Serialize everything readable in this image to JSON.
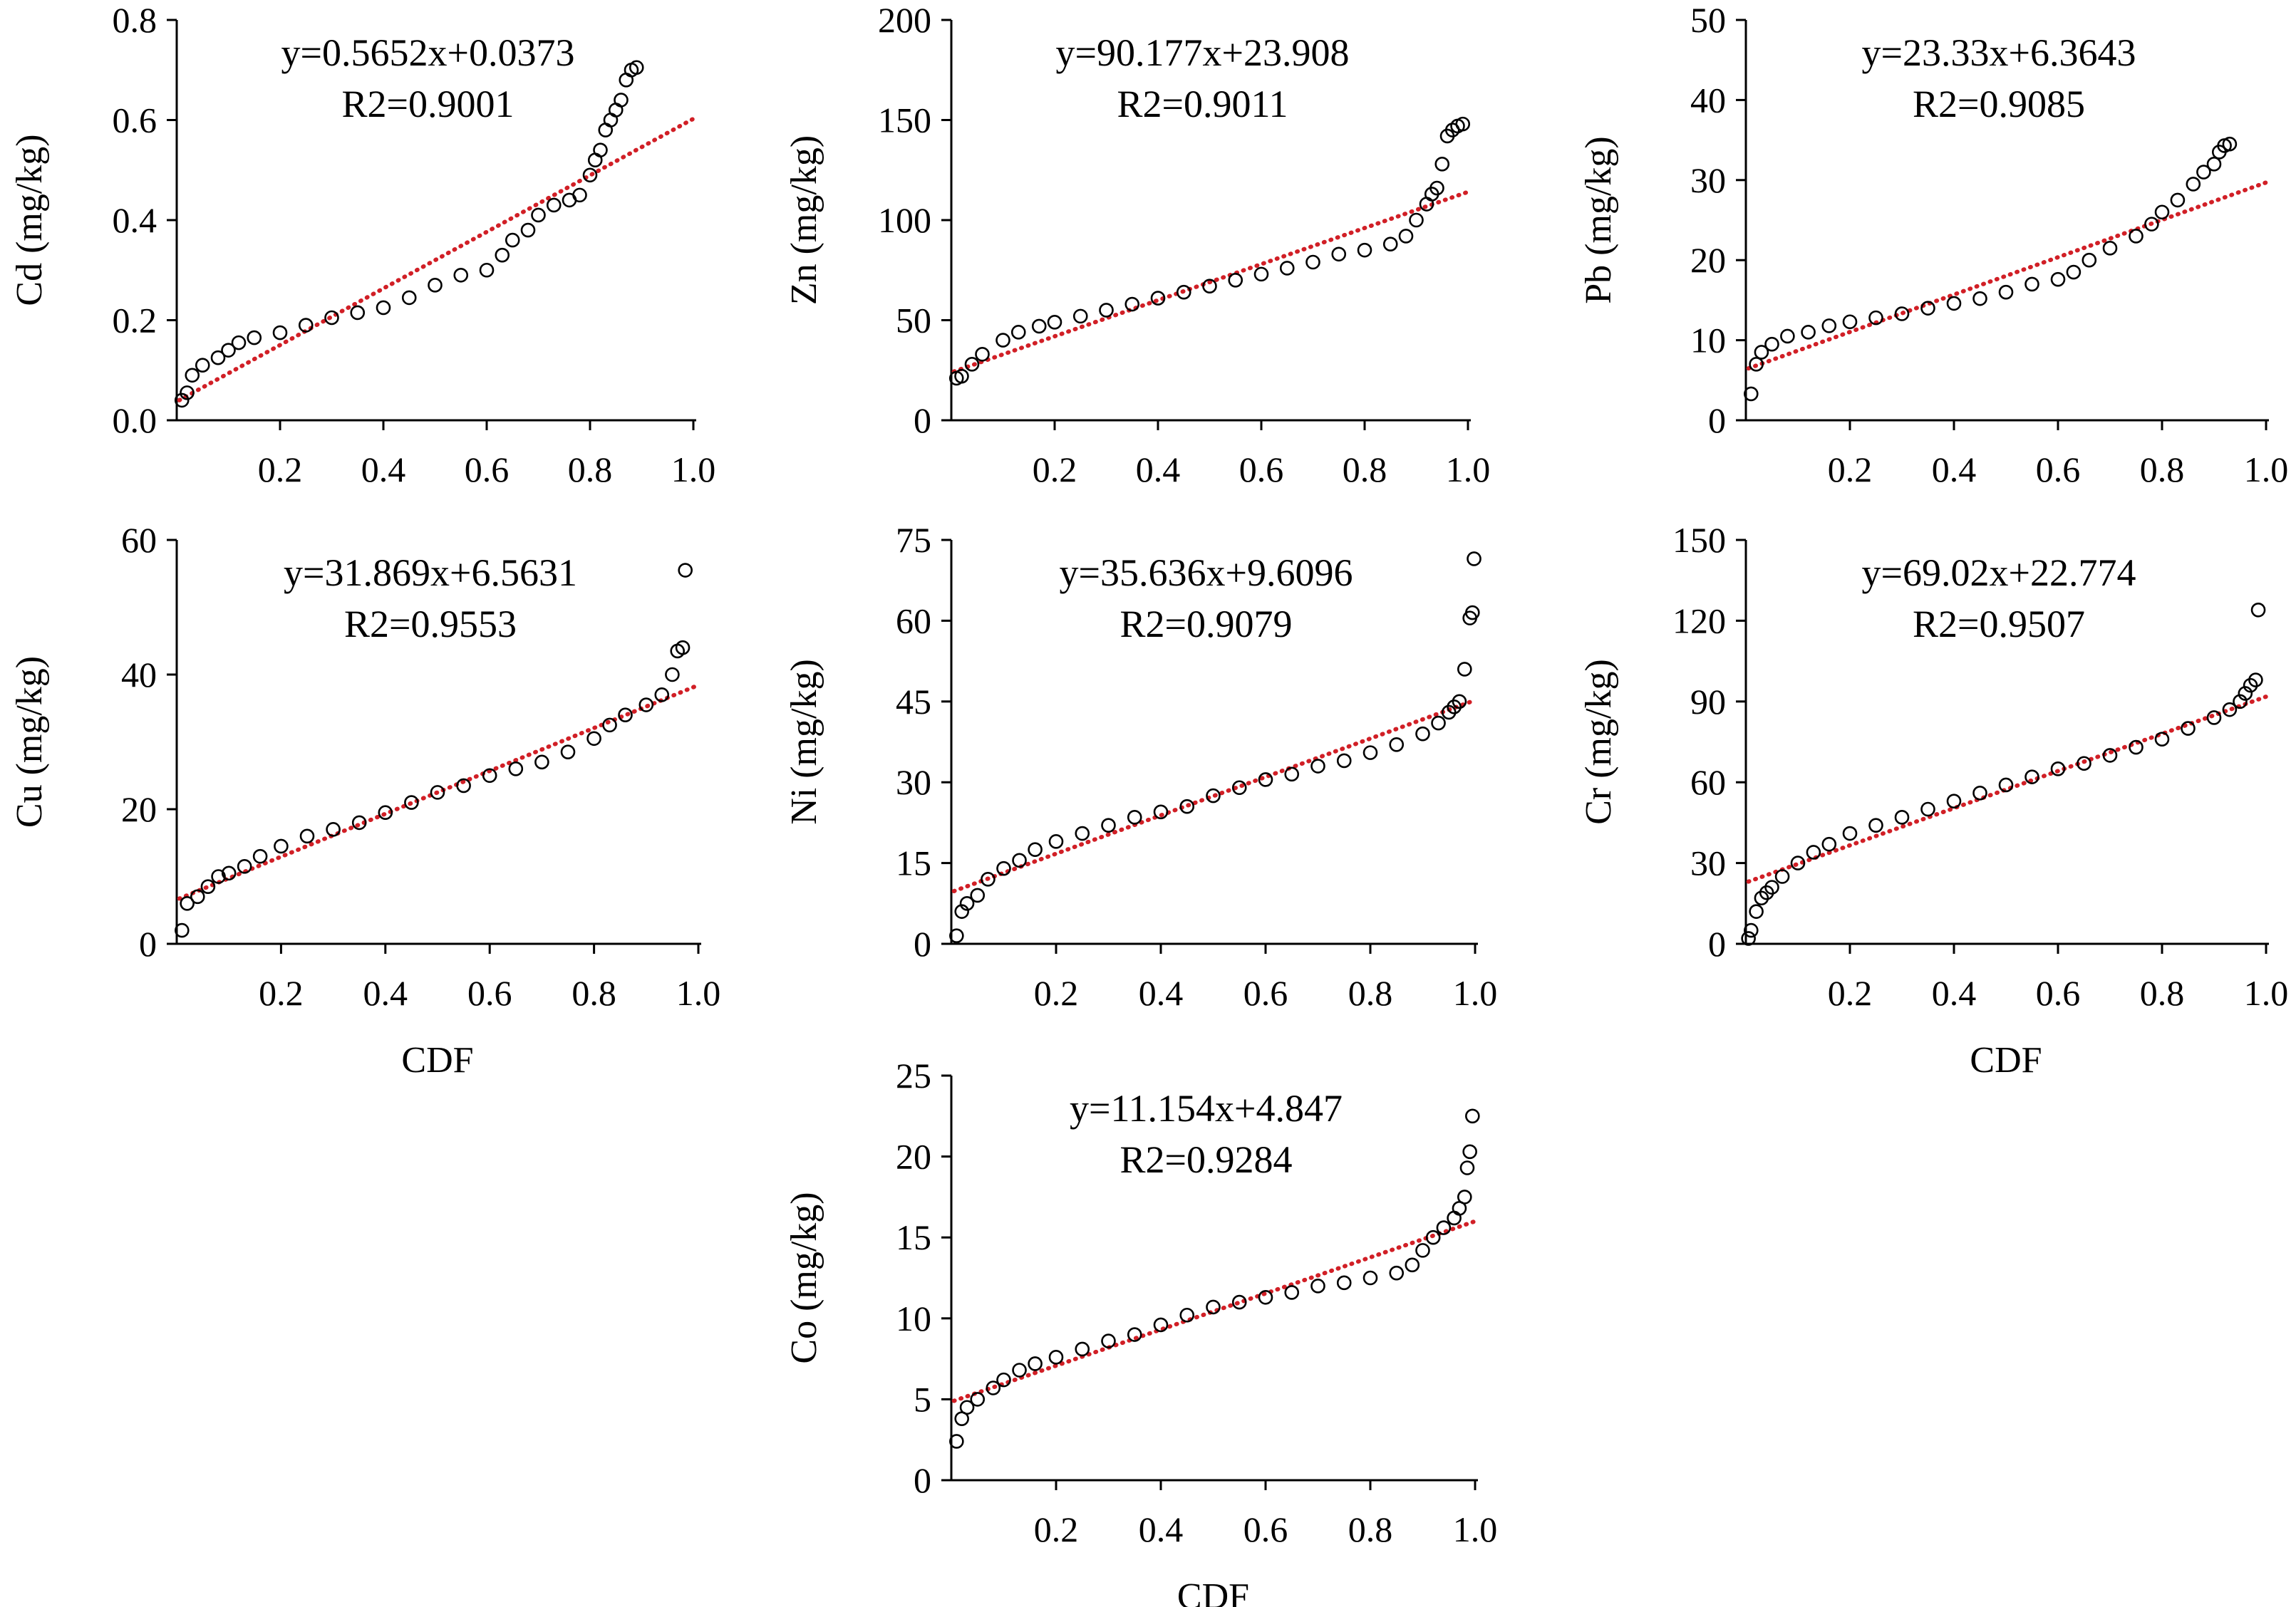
{
  "figure": {
    "background": "#ffffff",
    "point_color": "#000000",
    "fit_color": "#d11f26"
  },
  "chart_data": [
    {
      "type": "scatter",
      "id": "cd",
      "ylabel": "Cd (mg/kg)",
      "xlabel": "",
      "xlim": [
        0,
        1.0
      ],
      "ylim": [
        0,
        0.8
      ],
      "xticks": [
        "0.2",
        "0.4",
        "0.6",
        "0.8",
        "1.0"
      ],
      "yticks": [
        "0.0",
        "0.2",
        "0.4",
        "0.6",
        "0.8"
      ],
      "equation": "y=0.5652x+0.0373",
      "r2": "R2=0.9001",
      "fit": {
        "slope": 0.5652,
        "intercept": 0.0373,
        "x_range": [
          0,
          1.0
        ]
      },
      "points": [
        [
          0.01,
          0.04
        ],
        [
          0.02,
          0.055
        ],
        [
          0.03,
          0.09
        ],
        [
          0.05,
          0.11
        ],
        [
          0.08,
          0.125
        ],
        [
          0.1,
          0.14
        ],
        [
          0.12,
          0.155
        ],
        [
          0.15,
          0.165
        ],
        [
          0.2,
          0.175
        ],
        [
          0.25,
          0.19
        ],
        [
          0.3,
          0.205
        ],
        [
          0.35,
          0.215
        ],
        [
          0.4,
          0.225
        ],
        [
          0.45,
          0.245
        ],
        [
          0.5,
          0.27
        ],
        [
          0.55,
          0.29
        ],
        [
          0.6,
          0.3
        ],
        [
          0.63,
          0.33
        ],
        [
          0.65,
          0.36
        ],
        [
          0.68,
          0.38
        ],
        [
          0.7,
          0.41
        ],
        [
          0.73,
          0.43
        ],
        [
          0.76,
          0.44
        ],
        [
          0.78,
          0.45
        ],
        [
          0.8,
          0.49
        ],
        [
          0.81,
          0.52
        ],
        [
          0.82,
          0.54
        ],
        [
          0.83,
          0.58
        ],
        [
          0.84,
          0.6
        ],
        [
          0.85,
          0.62
        ],
        [
          0.86,
          0.64
        ],
        [
          0.87,
          0.68
        ],
        [
          0.88,
          0.7
        ],
        [
          0.89,
          0.705
        ]
      ]
    },
    {
      "type": "scatter",
      "id": "zn",
      "ylabel": "Zn (mg/kg)",
      "xlabel": "",
      "xlim": [
        0,
        1.0
      ],
      "ylim": [
        0,
        200
      ],
      "xticks": [
        "0.2",
        "0.4",
        "0.6",
        "0.8",
        "1.0"
      ],
      "yticks": [
        "0",
        "50",
        "100",
        "150",
        "200"
      ],
      "equation": "y=90.177x+23.908",
      "r2": "R2=0.9011",
      "fit": {
        "slope": 90.177,
        "intercept": 23.908,
        "x_range": [
          0,
          1.0
        ]
      },
      "points": [
        [
          0.01,
          21
        ],
        [
          0.02,
          22
        ],
        [
          0.04,
          28
        ],
        [
          0.06,
          33
        ],
        [
          0.1,
          40
        ],
        [
          0.13,
          44
        ],
        [
          0.17,
          47
        ],
        [
          0.2,
          49
        ],
        [
          0.25,
          52
        ],
        [
          0.3,
          55
        ],
        [
          0.35,
          58
        ],
        [
          0.4,
          61
        ],
        [
          0.45,
          64
        ],
        [
          0.5,
          67
        ],
        [
          0.55,
          70
        ],
        [
          0.6,
          73
        ],
        [
          0.65,
          76
        ],
        [
          0.7,
          79
        ],
        [
          0.75,
          83
        ],
        [
          0.8,
          85
        ],
        [
          0.85,
          88
        ],
        [
          0.88,
          92
        ],
        [
          0.9,
          100
        ],
        [
          0.92,
          108
        ],
        [
          0.93,
          113
        ],
        [
          0.94,
          116
        ],
        [
          0.95,
          128
        ],
        [
          0.96,
          142
        ],
        [
          0.97,
          145
        ],
        [
          0.98,
          147
        ],
        [
          0.99,
          148
        ]
      ]
    },
    {
      "type": "scatter",
      "id": "pb",
      "ylabel": "Pb (mg/kg)",
      "xlabel": "",
      "xlim": [
        0,
        1.0
      ],
      "ylim": [
        0,
        50
      ],
      "xticks": [
        "0.2",
        "0.4",
        "0.6",
        "0.8",
        "1.0"
      ],
      "yticks": [
        "0",
        "10",
        "20",
        "30",
        "40",
        "50"
      ],
      "equation": "y=23.33x+6.3643",
      "r2": "R2=0.9085",
      "fit": {
        "slope": 23.33,
        "intercept": 6.3643,
        "x_range": [
          0,
          1.0
        ]
      },
      "points": [
        [
          0.01,
          3.3
        ],
        [
          0.02,
          7
        ],
        [
          0.03,
          8.5
        ],
        [
          0.05,
          9.5
        ],
        [
          0.08,
          10.5
        ],
        [
          0.12,
          11
        ],
        [
          0.16,
          11.8
        ],
        [
          0.2,
          12.3
        ],
        [
          0.25,
          12.8
        ],
        [
          0.3,
          13.3
        ],
        [
          0.35,
          14
        ],
        [
          0.4,
          14.6
        ],
        [
          0.45,
          15.2
        ],
        [
          0.5,
          16
        ],
        [
          0.55,
          17
        ],
        [
          0.6,
          17.6
        ],
        [
          0.63,
          18.5
        ],
        [
          0.66,
          20
        ],
        [
          0.7,
          21.5
        ],
        [
          0.75,
          23
        ],
        [
          0.78,
          24.5
        ],
        [
          0.8,
          26
        ],
        [
          0.83,
          27.5
        ],
        [
          0.86,
          29.5
        ],
        [
          0.88,
          31
        ],
        [
          0.9,
          32
        ],
        [
          0.91,
          33.5
        ],
        [
          0.92,
          34.3
        ],
        [
          0.93,
          34.5
        ]
      ]
    },
    {
      "type": "scatter",
      "id": "cu",
      "ylabel": "Cu (mg/kg)",
      "xlabel": "CDF",
      "xlim": [
        0,
        1.0
      ],
      "ylim": [
        0,
        60
      ],
      "xticks": [
        "0.2",
        "0.4",
        "0.6",
        "0.8",
        "1.0"
      ],
      "yticks": [
        "0",
        "20",
        "40",
        "60"
      ],
      "equation": "y=31.869x+6.5631",
      "r2": "R2=0.9553",
      "fit": {
        "slope": 31.869,
        "intercept": 6.5631,
        "x_range": [
          0,
          1.0
        ]
      },
      "points": [
        [
          0.01,
          2
        ],
        [
          0.02,
          6
        ],
        [
          0.04,
          7
        ],
        [
          0.06,
          8.5
        ],
        [
          0.08,
          10
        ],
        [
          0.1,
          10.5
        ],
        [
          0.13,
          11.5
        ],
        [
          0.16,
          13
        ],
        [
          0.2,
          14.5
        ],
        [
          0.25,
          16
        ],
        [
          0.3,
          17
        ],
        [
          0.35,
          18
        ],
        [
          0.4,
          19.5
        ],
        [
          0.45,
          21
        ],
        [
          0.5,
          22.5
        ],
        [
          0.55,
          23.5
        ],
        [
          0.6,
          25
        ],
        [
          0.65,
          26
        ],
        [
          0.7,
          27
        ],
        [
          0.75,
          28.5
        ],
        [
          0.8,
          30.5
        ],
        [
          0.83,
          32.5
        ],
        [
          0.86,
          34
        ],
        [
          0.9,
          35.5
        ],
        [
          0.93,
          37
        ],
        [
          0.95,
          40
        ],
        [
          0.96,
          43.5
        ],
        [
          0.97,
          44
        ],
        [
          0.975,
          55.5
        ]
      ]
    },
    {
      "type": "scatter",
      "id": "ni",
      "ylabel": "Ni (mg/kg)",
      "xlabel": "",
      "xlim": [
        0,
        1.0
      ],
      "ylim": [
        0,
        75
      ],
      "xticks": [
        "0.2",
        "0.4",
        "0.6",
        "0.8",
        "1.0"
      ],
      "yticks": [
        "0",
        "15",
        "30",
        "45",
        "60",
        "75"
      ],
      "equation": "y=35.636x+9.6096",
      "r2": "R2=0.9079",
      "fit": {
        "slope": 35.636,
        "intercept": 9.6096,
        "x_range": [
          0,
          1.0
        ]
      },
      "points": [
        [
          0.01,
          1.5
        ],
        [
          0.02,
          6
        ],
        [
          0.03,
          7.5
        ],
        [
          0.05,
          9
        ],
        [
          0.07,
          12
        ],
        [
          0.1,
          14
        ],
        [
          0.13,
          15.5
        ],
        [
          0.16,
          17.5
        ],
        [
          0.2,
          19
        ],
        [
          0.25,
          20.5
        ],
        [
          0.3,
          22
        ],
        [
          0.35,
          23.5
        ],
        [
          0.4,
          24.5
        ],
        [
          0.45,
          25.5
        ],
        [
          0.5,
          27.5
        ],
        [
          0.55,
          29
        ],
        [
          0.6,
          30.5
        ],
        [
          0.65,
          31.5
        ],
        [
          0.7,
          33
        ],
        [
          0.75,
          34
        ],
        [
          0.8,
          35.5
        ],
        [
          0.85,
          37
        ],
        [
          0.9,
          39
        ],
        [
          0.93,
          41
        ],
        [
          0.95,
          43
        ],
        [
          0.96,
          44
        ],
        [
          0.97,
          45
        ],
        [
          0.98,
          51
        ],
        [
          0.99,
          60.5
        ],
        [
          0.995,
          61.5
        ],
        [
          0.998,
          71.5
        ]
      ]
    },
    {
      "type": "scatter",
      "id": "cr",
      "ylabel": "Cr (mg/kg)",
      "xlabel": "CDF",
      "xlim": [
        0,
        1.0
      ],
      "ylim": [
        0,
        150
      ],
      "xticks": [
        "0.2",
        "0.4",
        "0.6",
        "0.8",
        "1.0"
      ],
      "yticks": [
        "0",
        "30",
        "60",
        "90",
        "120",
        "150"
      ],
      "equation": "y=69.02x+22.774",
      "r2": "R2=0.9507",
      "fit": {
        "slope": 69.02,
        "intercept": 22.774,
        "x_range": [
          0,
          1.0
        ]
      },
      "points": [
        [
          0.005,
          2
        ],
        [
          0.01,
          5
        ],
        [
          0.02,
          12
        ],
        [
          0.03,
          17
        ],
        [
          0.04,
          19
        ],
        [
          0.05,
          21
        ],
        [
          0.07,
          25
        ],
        [
          0.1,
          30
        ],
        [
          0.13,
          34
        ],
        [
          0.16,
          37
        ],
        [
          0.2,
          41
        ],
        [
          0.25,
          44
        ],
        [
          0.3,
          47
        ],
        [
          0.35,
          50
        ],
        [
          0.4,
          53
        ],
        [
          0.45,
          56
        ],
        [
          0.5,
          59
        ],
        [
          0.55,
          62
        ],
        [
          0.6,
          65
        ],
        [
          0.65,
          67
        ],
        [
          0.7,
          70
        ],
        [
          0.75,
          73
        ],
        [
          0.8,
          76
        ],
        [
          0.85,
          80
        ],
        [
          0.9,
          84
        ],
        [
          0.93,
          87
        ],
        [
          0.95,
          90
        ],
        [
          0.96,
          93
        ],
        [
          0.97,
          96
        ],
        [
          0.98,
          98
        ],
        [
          0.985,
          124
        ]
      ]
    },
    {
      "type": "scatter",
      "id": "co",
      "ylabel": "Co (mg/kg)",
      "xlabel": "CDF",
      "xlim": [
        0,
        1.0
      ],
      "ylim": [
        0,
        25
      ],
      "xticks": [
        "0.2",
        "0.4",
        "0.6",
        "0.8",
        "1.0"
      ],
      "yticks": [
        "0",
        "5",
        "10",
        "15",
        "20",
        "25"
      ],
      "equation": "y=11.154x+4.847",
      "r2": "R2=0.9284",
      "fit": {
        "slope": 11.154,
        "intercept": 4.847,
        "x_range": [
          0,
          1.0
        ]
      },
      "points": [
        [
          0.01,
          2.4
        ],
        [
          0.02,
          3.8
        ],
        [
          0.03,
          4.5
        ],
        [
          0.05,
          5
        ],
        [
          0.08,
          5.7
        ],
        [
          0.1,
          6.2
        ],
        [
          0.13,
          6.8
        ],
        [
          0.16,
          7.2
        ],
        [
          0.2,
          7.6
        ],
        [
          0.25,
          8.1
        ],
        [
          0.3,
          8.6
        ],
        [
          0.35,
          9
        ],
        [
          0.4,
          9.6
        ],
        [
          0.45,
          10.2
        ],
        [
          0.5,
          10.7
        ],
        [
          0.55,
          11
        ],
        [
          0.6,
          11.3
        ],
        [
          0.65,
          11.6
        ],
        [
          0.7,
          12
        ],
        [
          0.75,
          12.2
        ],
        [
          0.8,
          12.5
        ],
        [
          0.85,
          12.8
        ],
        [
          0.88,
          13.3
        ],
        [
          0.9,
          14.2
        ],
        [
          0.92,
          15
        ],
        [
          0.94,
          15.6
        ],
        [
          0.96,
          16.2
        ],
        [
          0.97,
          16.8
        ],
        [
          0.98,
          17.5
        ],
        [
          0.985,
          19.3
        ],
        [
          0.99,
          20.3
        ],
        [
          0.995,
          22.5
        ]
      ]
    }
  ]
}
